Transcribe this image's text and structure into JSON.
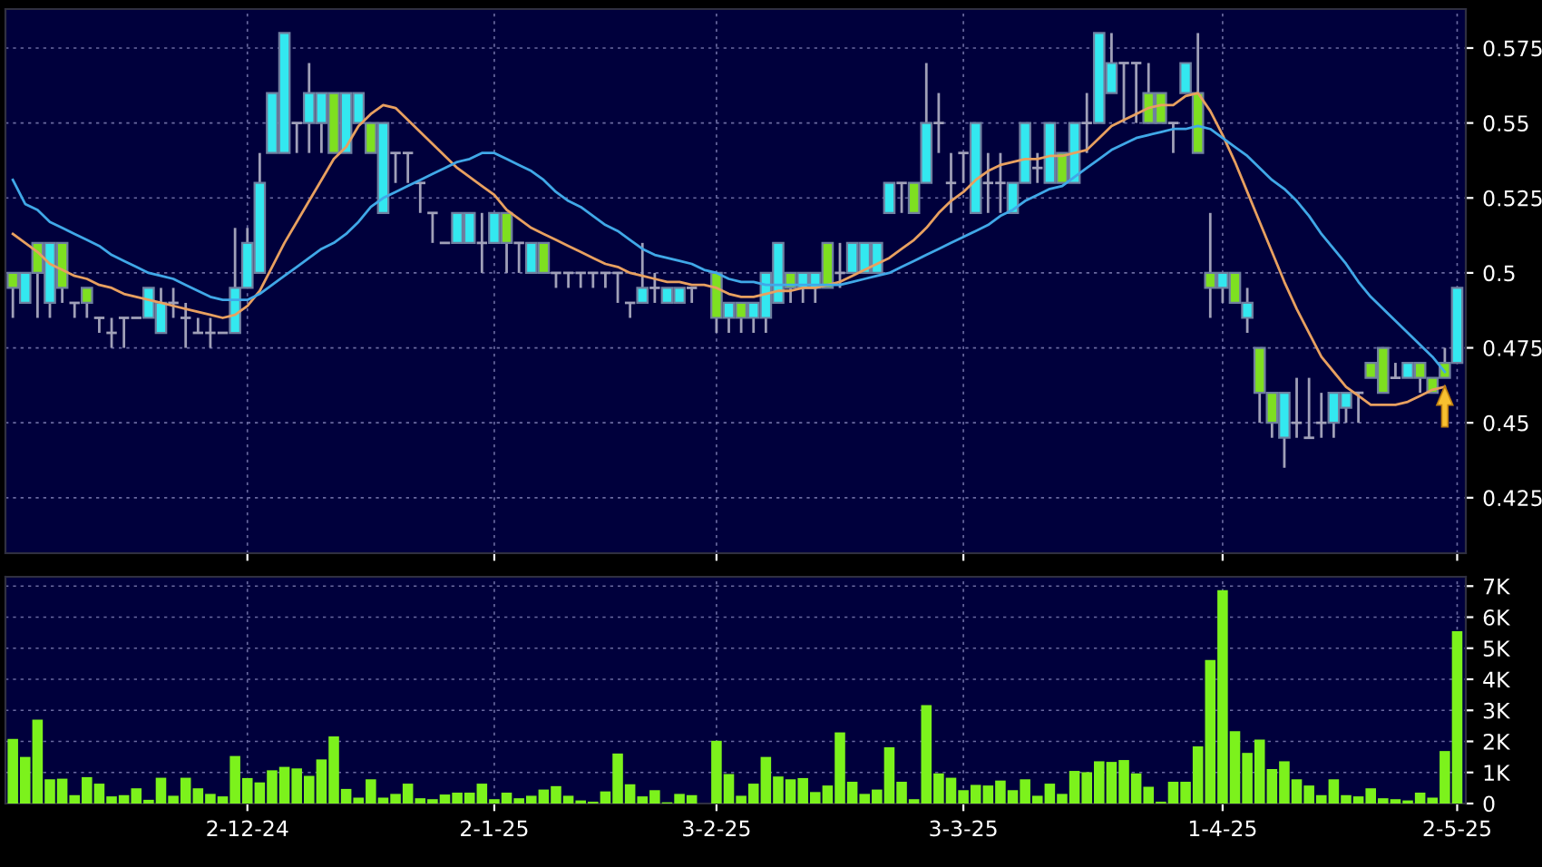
{
  "chart_data": [
    {
      "type": "candlestick",
      "categories": [
        null,
        null,
        null,
        null,
        null,
        null,
        null,
        null,
        null,
        null,
        null,
        null,
        null,
        null,
        null,
        null,
        null,
        null,
        null,
        null,
        null,
        null,
        null,
        null,
        null,
        null,
        null,
        null,
        null,
        null,
        null,
        null,
        null,
        null,
        null,
        null,
        null,
        null,
        null,
        null,
        null,
        null,
        null,
        null,
        null,
        null,
        null,
        null,
        null,
        null,
        null,
        null,
        null,
        null,
        null,
        null,
        null,
        null,
        null,
        null,
        null,
        null,
        null,
        null,
        null,
        null,
        null,
        null,
        null,
        null,
        null,
        null,
        null,
        null,
        null,
        null,
        null,
        null,
        null,
        null,
        null,
        null,
        null,
        null,
        null,
        null,
        null,
        null,
        null,
        null,
        null,
        null,
        null,
        null,
        null,
        null,
        null,
        null,
        null,
        null,
        null,
        null,
        null,
        null,
        null,
        null,
        null,
        null,
        null,
        null,
        null,
        null,
        null,
        null,
        null,
        null,
        null,
        null
      ],
      "ohlc": [
        [
          0.5,
          0.5,
          0.485,
          0.495
        ],
        [
          0.49,
          0.5,
          0.49,
          0.5
        ],
        [
          0.51,
          0.51,
          0.485,
          0.5
        ],
        [
          0.49,
          0.51,
          0.485,
          0.51
        ],
        [
          0.51,
          0.51,
          0.49,
          0.495
        ],
        [
          0.49,
          0.49,
          0.485,
          0.49
        ],
        [
          0.495,
          0.495,
          0.485,
          0.49
        ],
        [
          0.485,
          0.485,
          0.48,
          0.485
        ],
        [
          0.48,
          0.485,
          0.475,
          0.48
        ],
        [
          0.485,
          0.485,
          0.475,
          0.485
        ],
        [
          0.485,
          0.485,
          0.485,
          0.485
        ],
        [
          0.485,
          0.495,
          0.485,
          0.495
        ],
        [
          0.48,
          0.495,
          0.48,
          0.49
        ],
        [
          0.49,
          0.495,
          0.485,
          0.49
        ],
        [
          0.485,
          0.49,
          0.475,
          0.485
        ],
        [
          0.48,
          0.485,
          0.48,
          0.48
        ],
        [
          0.48,
          0.485,
          0.475,
          0.48
        ],
        [
          0.48,
          0.48,
          0.48,
          0.48
        ],
        [
          0.48,
          0.515,
          0.48,
          0.495
        ],
        [
          0.495,
          0.515,
          0.495,
          0.51
        ],
        [
          0.5,
          0.54,
          0.5,
          0.53
        ],
        [
          0.54,
          0.56,
          0.54,
          0.56
        ],
        [
          0.54,
          0.58,
          0.54,
          0.58
        ],
        [
          0.55,
          0.55,
          0.54,
          0.55
        ],
        [
          0.55,
          0.57,
          0.54,
          0.56
        ],
        [
          0.55,
          0.56,
          0.54,
          0.56
        ],
        [
          0.56,
          0.56,
          0.54,
          0.54
        ],
        [
          0.54,
          0.56,
          0.54,
          0.56
        ],
        [
          0.55,
          0.56,
          0.55,
          0.56
        ],
        [
          0.55,
          0.55,
          0.54,
          0.54
        ],
        [
          0.52,
          0.55,
          0.52,
          0.55
        ],
        [
          0.54,
          0.54,
          0.53,
          0.54
        ],
        [
          0.54,
          0.54,
          0.53,
          0.54
        ],
        [
          0.53,
          0.53,
          0.52,
          0.53
        ],
        [
          0.52,
          0.52,
          0.51,
          0.52
        ],
        [
          0.51,
          0.51,
          0.51,
          0.51
        ],
        [
          0.51,
          0.52,
          0.51,
          0.52
        ],
        [
          0.51,
          0.52,
          0.51,
          0.52
        ],
        [
          0.51,
          0.52,
          0.5,
          0.51
        ],
        [
          0.51,
          0.52,
          0.51,
          0.52
        ],
        [
          0.52,
          0.52,
          0.5,
          0.51
        ],
        [
          0.51,
          0.51,
          0.5,
          0.51
        ],
        [
          0.5,
          0.51,
          0.5,
          0.51
        ],
        [
          0.51,
          0.51,
          0.5,
          0.5
        ],
        [
          0.5,
          0.5,
          0.495,
          0.5
        ],
        [
          0.5,
          0.5,
          0.495,
          0.5
        ],
        [
          0.5,
          0.5,
          0.495,
          0.5
        ],
        [
          0.5,
          0.5,
          0.495,
          0.5
        ],
        [
          0.5,
          0.5,
          0.495,
          0.5
        ],
        [
          0.5,
          0.5,
          0.49,
          0.5
        ],
        [
          0.49,
          0.49,
          0.485,
          0.49
        ],
        [
          0.49,
          0.51,
          0.49,
          0.495
        ],
        [
          0.495,
          0.5,
          0.49,
          0.495
        ],
        [
          0.49,
          0.495,
          0.49,
          0.495
        ],
        [
          0.49,
          0.495,
          0.49,
          0.495
        ],
        [
          0.495,
          0.495,
          0.49,
          0.495
        ],
        null,
        [
          0.5,
          0.5,
          0.48,
          0.485
        ],
        [
          0.485,
          0.49,
          0.48,
          0.49
        ],
        [
          0.49,
          0.49,
          0.48,
          0.485
        ],
        [
          0.485,
          0.49,
          0.48,
          0.49
        ],
        [
          0.485,
          0.5,
          0.48,
          0.5
        ],
        [
          0.49,
          0.51,
          0.49,
          0.51
        ],
        [
          0.5,
          0.5,
          0.49,
          0.495
        ],
        [
          0.495,
          0.5,
          0.49,
          0.5
        ],
        [
          0.495,
          0.5,
          0.49,
          0.5
        ],
        [
          0.51,
          0.51,
          0.495,
          0.495
        ],
        [
          0.5,
          0.51,
          0.495,
          0.5
        ],
        [
          0.5,
          0.51,
          0.5,
          0.51
        ],
        [
          0.5,
          0.51,
          0.5,
          0.51
        ],
        [
          0.5,
          0.51,
          0.5,
          0.51
        ],
        [
          0.52,
          0.53,
          0.52,
          0.53
        ],
        [
          0.53,
          0.53,
          0.52,
          0.53
        ],
        [
          0.53,
          0.53,
          0.52,
          0.52
        ],
        [
          0.53,
          0.57,
          0.53,
          0.55
        ],
        [
          0.55,
          0.56,
          0.54,
          0.55
        ],
        [
          0.53,
          0.54,
          0.52,
          0.53
        ],
        [
          0.54,
          0.54,
          0.53,
          0.54
        ],
        [
          0.52,
          0.55,
          0.52,
          0.55
        ],
        [
          0.53,
          0.54,
          0.52,
          0.53
        ],
        [
          0.53,
          0.54,
          0.52,
          0.53
        ],
        [
          0.52,
          0.53,
          0.52,
          0.53
        ],
        [
          0.53,
          0.55,
          0.53,
          0.55
        ],
        [
          0.535,
          0.54,
          0.53,
          0.535
        ],
        [
          0.53,
          0.55,
          0.53,
          0.55
        ],
        [
          0.54,
          0.54,
          0.53,
          0.53
        ],
        [
          0.53,
          0.55,
          0.53,
          0.55
        ],
        [
          0.55,
          0.56,
          0.54,
          0.55
        ],
        [
          0.55,
          0.58,
          0.55,
          0.58
        ],
        [
          0.56,
          0.58,
          0.56,
          0.57
        ],
        [
          0.57,
          0.57,
          0.55,
          0.57
        ],
        [
          0.57,
          0.57,
          0.55,
          0.57
        ],
        [
          0.56,
          0.57,
          0.55,
          0.55
        ],
        [
          0.56,
          0.56,
          0.55,
          0.55
        ],
        [
          0.55,
          0.55,
          0.54,
          0.55
        ],
        [
          0.56,
          0.57,
          0.56,
          0.57
        ],
        [
          0.56,
          0.58,
          0.54,
          0.54
        ],
        [
          0.5,
          0.52,
          0.485,
          0.495
        ],
        [
          0.495,
          0.5,
          0.49,
          0.5
        ],
        [
          0.5,
          0.5,
          0.49,
          0.49
        ],
        [
          0.485,
          0.495,
          0.48,
          0.49
        ],
        [
          0.475,
          0.475,
          0.45,
          0.46
        ],
        [
          0.46,
          0.46,
          0.445,
          0.45
        ],
        [
          0.445,
          0.46,
          0.435,
          0.46
        ],
        [
          0.45,
          0.465,
          0.445,
          0.45
        ],
        [
          0.445,
          0.465,
          0.445,
          0.445
        ],
        [
          0.45,
          0.46,
          0.445,
          0.45
        ],
        [
          0.45,
          0.46,
          0.445,
          0.46
        ],
        [
          0.455,
          0.46,
          0.45,
          0.46
        ],
        [
          0.46,
          0.46,
          0.45,
          0.46
        ],
        [
          0.47,
          0.47,
          0.465,
          0.465
        ],
        [
          0.475,
          0.475,
          0.46,
          0.46
        ],
        [
          0.465,
          0.47,
          0.465,
          0.465
        ],
        [
          0.465,
          0.47,
          0.465,
          0.47
        ],
        [
          0.47,
          0.47,
          0.46,
          0.465
        ],
        [
          0.465,
          0.465,
          0.46,
          0.46
        ],
        [
          0.47,
          0.475,
          0.465,
          0.465
        ],
        [
          0.47,
          0.495,
          0.47,
          0.495
        ]
      ],
      "colors": [
        "#7ee020",
        "#33e8f0",
        "#7ee020",
        "#33e8f0",
        "#7ee020",
        "#a0a0b8",
        "#7ee020",
        "#a0a0b8",
        "#a0a0b8",
        "#a0a0b8",
        "#a0a0b8",
        "#33e8f0",
        "#33e8f0",
        "#a0a0b8",
        "#a0a0b8",
        "#a0a0b8",
        "#a0a0b8",
        "#a0a0b8",
        "#33e8f0",
        "#33e8f0",
        "#33e8f0",
        "#33e8f0",
        "#33e8f0",
        "#a0a0b8",
        "#33e8f0",
        "#33e8f0",
        "#7ee020",
        "#33e8f0",
        "#33e8f0",
        "#7ee020",
        "#33e8f0",
        "#a0a0b8",
        "#a0a0b8",
        "#a0a0b8",
        "#a0a0b8",
        "#a0a0b8",
        "#33e8f0",
        "#33e8f0",
        "#a0a0b8",
        "#33e8f0",
        "#7ee020",
        "#a0a0b8",
        "#33e8f0",
        "#7ee020",
        "#a0a0b8",
        "#a0a0b8",
        "#a0a0b8",
        "#a0a0b8",
        "#a0a0b8",
        "#a0a0b8",
        "#a0a0b8",
        "#33e8f0",
        "#a0a0b8",
        "#33e8f0",
        "#33e8f0",
        "#a0a0b8",
        null,
        "#7ee020",
        "#33e8f0",
        "#7ee020",
        "#33e8f0",
        "#33e8f0",
        "#33e8f0",
        "#7ee020",
        "#33e8f0",
        "#33e8f0",
        "#7ee020",
        "#a0a0b8",
        "#33e8f0",
        "#33e8f0",
        "#33e8f0",
        "#33e8f0",
        "#a0a0b8",
        "#7ee020",
        "#33e8f0",
        "#a0a0b8",
        "#a0a0b8",
        "#a0a0b8",
        "#33e8f0",
        "#a0a0b8",
        "#a0a0b8",
        "#33e8f0",
        "#33e8f0",
        "#a0a0b8",
        "#33e8f0",
        "#7ee020",
        "#33e8f0",
        "#a0a0b8",
        "#33e8f0",
        "#33e8f0",
        "#a0a0b8",
        "#a0a0b8",
        "#7ee020",
        "#7ee020",
        "#a0a0b8",
        "#33e8f0",
        "#7ee020",
        "#7ee020",
        "#33e8f0",
        "#7ee020",
        "#33e8f0",
        "#7ee020",
        "#7ee020",
        "#33e8f0",
        "#a0a0b8",
        "#a0a0b8",
        "#a0a0b8",
        "#33e8f0",
        "#33e8f0",
        "#a0a0b8",
        "#7ee020",
        "#7ee020",
        "#a0a0b8",
        "#33e8f0",
        "#7ee020",
        "#7ee020",
        "#7ee020",
        "#33e8f0"
      ],
      "series": [
        {
          "type": "line",
          "color": "#e8a060",
          "values": [
            0.513,
            0.51,
            0.507,
            0.503,
            0.501,
            0.499,
            0.498,
            0.496,
            0.495,
            0.493,
            0.492,
            0.491,
            0.49,
            0.489,
            0.488,
            0.487,
            0.486,
            0.485,
            0.486,
            0.489,
            0.494,
            0.502,
            0.51,
            0.517,
            0.524,
            0.531,
            0.538,
            0.542,
            0.549,
            0.553,
            0.556,
            0.555,
            0.551,
            0.547,
            0.543,
            0.539,
            0.535,
            0.532,
            0.529,
            0.526,
            0.521,
            0.518,
            0.515,
            0.513,
            0.511,
            0.509,
            0.507,
            0.505,
            0.503,
            0.502,
            0.5,
            0.499,
            0.498,
            0.497,
            0.497,
            0.496,
            0.496,
            0.495,
            0.493,
            0.492,
            0.492,
            0.493,
            0.494,
            0.494,
            0.495,
            0.495,
            0.496,
            0.497,
            0.499,
            0.501,
            0.503,
            0.505,
            0.508,
            0.511,
            0.515,
            0.52,
            0.524,
            0.527,
            0.531,
            0.534,
            0.536,
            0.537,
            0.538,
            0.538,
            0.539,
            0.539,
            0.54,
            0.541,
            0.545,
            0.549,
            0.551,
            0.553,
            0.555,
            0.556,
            0.556,
            0.559,
            0.56,
            0.554,
            0.546,
            0.537,
            0.527,
            0.517,
            0.507,
            0.497,
            0.488,
            0.48,
            0.472,
            0.467,
            0.462,
            0.459,
            0.456,
            0.456,
            0.456,
            0.457,
            0.459,
            0.461,
            0.462,
            null
          ]
        },
        {
          "type": "line",
          "color": "#40a8e8",
          "values": [
            0.531,
            0.523,
            0.521,
            0.517,
            0.515,
            0.513,
            0.511,
            0.509,
            0.506,
            0.504,
            0.502,
            0.5,
            0.499,
            0.498,
            0.496,
            0.494,
            0.492,
            0.491,
            0.491,
            0.491,
            0.493,
            0.496,
            0.499,
            0.502,
            0.505,
            0.508,
            0.51,
            0.513,
            0.517,
            0.522,
            0.525,
            0.527,
            0.529,
            0.531,
            0.533,
            0.535,
            0.537,
            0.538,
            0.54,
            0.54,
            0.538,
            0.536,
            0.534,
            0.531,
            0.527,
            0.524,
            0.522,
            0.519,
            0.516,
            0.514,
            0.511,
            0.508,
            0.506,
            0.505,
            0.504,
            0.503,
            0.501,
            0.5,
            0.498,
            0.497,
            0.497,
            0.496,
            0.496,
            0.496,
            0.496,
            0.496,
            0.496,
            0.496,
            0.497,
            0.498,
            0.499,
            0.5,
            0.502,
            0.504,
            0.506,
            0.508,
            0.51,
            0.512,
            0.514,
            0.516,
            0.519,
            0.521,
            0.524,
            0.526,
            0.528,
            0.529,
            0.532,
            0.535,
            0.538,
            0.541,
            0.543,
            0.545,
            0.546,
            0.547,
            0.548,
            0.548,
            0.549,
            0.548,
            0.545,
            0.542,
            0.539,
            0.535,
            0.531,
            0.528,
            0.524,
            0.519,
            0.513,
            0.508,
            0.503,
            0.497,
            0.492,
            0.488,
            0.484,
            0.48,
            0.476,
            0.472,
            0.467,
            null
          ]
        }
      ],
      "ylim": [
        0.4065,
        0.588
      ],
      "yticks": [
        0.425,
        0.45,
        0.475,
        0.5,
        0.525,
        0.55,
        0.575
      ],
      "grid": true,
      "tick_labels": "y"
    },
    {
      "type": "bar",
      "categories": [
        null,
        null,
        null,
        null,
        null,
        null,
        null,
        null,
        null,
        null,
        null,
        null,
        null,
        null,
        null,
        null,
        null,
        null,
        null,
        "2-12-24",
        null,
        null,
        null,
        null,
        null,
        null,
        null,
        null,
        null,
        null,
        null,
        null,
        null,
        null,
        null,
        null,
        null,
        null,
        null,
        "2-1-25",
        null,
        null,
        null,
        null,
        null,
        null,
        null,
        null,
        null,
        null,
        null,
        null,
        null,
        null,
        null,
        null,
        null,
        "3-2-25",
        null,
        null,
        null,
        null,
        null,
        null,
        null,
        null,
        null,
        null,
        null,
        null,
        null,
        null,
        null,
        null,
        null,
        null,
        null,
        "3-3-25",
        null,
        null,
        null,
        null,
        null,
        null,
        null,
        null,
        null,
        null,
        null,
        null,
        null,
        null,
        null,
        null,
        null,
        null,
        null,
        null,
        "1-4-25",
        null,
        null,
        null,
        null,
        null,
        null,
        null,
        null,
        null,
        null,
        null,
        null,
        null,
        null,
        null,
        null,
        null,
        null,
        "2-5-25"
      ],
      "values": [
        2.08,
        1.5,
        2.7,
        0.78,
        0.8,
        0.27,
        0.85,
        0.64,
        0.23,
        0.27,
        0.49,
        0.12,
        0.83,
        0.25,
        0.83,
        0.49,
        0.31,
        0.23,
        1.53,
        0.82,
        0.68,
        1.07,
        1.18,
        1.13,
        0.89,
        1.42,
        2.16,
        0.47,
        0.19,
        0.78,
        0.19,
        0.31,
        0.64,
        0.17,
        0.14,
        0.29,
        0.35,
        0.35,
        0.64,
        0.14,
        0.35,
        0.17,
        0.25,
        0.45,
        0.56,
        0.25,
        0.1,
        0.06,
        0.39,
        1.61,
        0.62,
        0.23,
        0.43,
        0.04,
        0.31,
        0.27,
        0,
        2.02,
        0.95,
        0.25,
        0.64,
        1.5,
        0.87,
        0.78,
        0.82,
        0.37,
        0.58,
        2.29,
        0.7,
        0.31,
        0.45,
        1.81,
        0.7,
        0.14,
        3.17,
        0.97,
        0.83,
        0.43,
        0.6,
        0.58,
        0.74,
        0.43,
        0.78,
        0.25,
        0.64,
        0.31,
        1.05,
        1.01,
        1.36,
        1.34,
        1.4,
        0.97,
        0.54,
        0.06,
        0.7,
        0.7,
        1.84,
        4.62,
        6.87,
        2.33,
        1.63,
        2.06,
        1.11,
        1.36,
        0.78,
        0.58,
        0.27,
        0.78,
        0.27,
        0.23,
        0.49,
        0.17,
        0.14,
        0.1,
        0.35,
        0.19,
        1.69,
        5.55
      ],
      "color": "#7cf21c",
      "ylim": [
        0,
        7.3
      ],
      "yticks": [
        0,
        {
          "value": 1,
          "label": "1K"
        },
        {
          "value": 2,
          "label": "2K"
        },
        {
          "value": 3,
          "label": "3K"
        },
        {
          "value": 4,
          "label": "4K"
        },
        {
          "value": 5,
          "label": "5K"
        },
        {
          "value": 6,
          "label": "6K"
        },
        {
          "value": 7,
          "label": "7K"
        }
      ],
      "grid": true
    }
  ]
}
